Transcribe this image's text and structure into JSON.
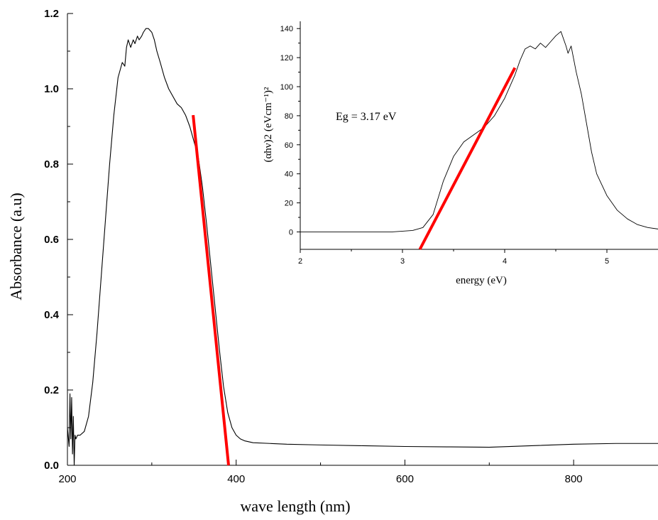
{
  "chart_data": [
    {
      "type": "line",
      "xlabel": "wave length (nm)",
      "ylabel": "Absorbance (a.u)",
      "xlim": [
        200,
        900
      ],
      "ylim": [
        0.0,
        1.2
      ],
      "x_ticks": [
        200,
        400,
        600,
        800
      ],
      "y_ticks": [
        0.0,
        0.2,
        0.4,
        0.6,
        0.8,
        1.0,
        1.2
      ],
      "x_tick_labels": [
        "200",
        "400",
        "600",
        "800"
      ],
      "y_tick_labels": [
        "0.0",
        "0.2",
        "0.4",
        "0.6",
        "0.8",
        "1.0",
        "1.2"
      ],
      "grid": false,
      "series": [
        {
          "color": "#000000",
          "x": [
            200,
            202,
            203,
            204,
            205,
            206,
            207,
            208,
            209,
            210,
            212,
            215,
            220,
            225,
            230,
            235,
            240,
            245,
            250,
            255,
            260,
            265,
            268,
            270,
            272,
            275,
            278,
            280,
            283,
            285,
            288,
            290,
            293,
            296,
            300,
            303,
            306,
            310,
            315,
            320,
            325,
            330,
            335,
            340,
            345,
            350,
            355,
            360,
            365,
            370,
            375,
            380,
            385,
            390,
            395,
            400,
            405,
            410,
            420,
            440,
            460,
            500,
            550,
            600,
            650,
            700,
            750,
            800,
            850,
            900
          ],
          "y": [
            0.1,
            0.05,
            0.19,
            0.07,
            0.18,
            0.03,
            0.13,
            0.0,
            0.08,
            0.07,
            0.08,
            0.08,
            0.09,
            0.13,
            0.22,
            0.35,
            0.5,
            0.65,
            0.8,
            0.93,
            1.03,
            1.07,
            1.06,
            1.11,
            1.13,
            1.11,
            1.13,
            1.12,
            1.14,
            1.13,
            1.14,
            1.15,
            1.16,
            1.16,
            1.15,
            1.13,
            1.1,
            1.07,
            1.03,
            1.0,
            0.98,
            0.96,
            0.95,
            0.93,
            0.9,
            0.86,
            0.82,
            0.74,
            0.64,
            0.53,
            0.42,
            0.31,
            0.21,
            0.14,
            0.1,
            0.08,
            0.07,
            0.065,
            0.06,
            0.058,
            0.056,
            0.054,
            0.052,
            0.05,
            0.049,
            0.048,
            0.052,
            0.056,
            0.058,
            0.058
          ]
        },
        {
          "color": "#ff0000",
          "x": [
            349,
            391
          ],
          "y": [
            0.93,
            0.0
          ]
        }
      ]
    },
    {
      "type": "line",
      "title": "",
      "xlabel": "energy (eV)",
      "ylabel": "(αhν)2 (eVcm⁻¹)²",
      "xlim": [
        2.0,
        5.5
      ],
      "ylim": [
        -12,
        145
      ],
      "x_ticks": [
        2,
        3,
        4,
        5
      ],
      "y_ticks": [
        0,
        20,
        40,
        60,
        80,
        100,
        120,
        140
      ],
      "x_tick_labels": [
        "2",
        "3",
        "4",
        "5"
      ],
      "y_tick_labels": [
        "0",
        "20",
        "40",
        "60",
        "80",
        "100",
        "120",
        "140"
      ],
      "annotation": "Eg = 3.17 eV",
      "grid": false,
      "series": [
        {
          "color": "#000000",
          "x": [
            2.0,
            2.5,
            2.9,
            3.1,
            3.2,
            3.3,
            3.4,
            3.5,
            3.6,
            3.7,
            3.8,
            3.9,
            4.0,
            4.1,
            4.15,
            4.2,
            4.25,
            4.3,
            4.35,
            4.4,
            4.45,
            4.5,
            4.55,
            4.6,
            4.62,
            4.65,
            4.7,
            4.75,
            4.8,
            4.85,
            4.9,
            5.0,
            5.1,
            5.2,
            5.3,
            5.4,
            5.5
          ],
          "y": [
            0,
            0,
            0,
            1,
            3,
            12,
            35,
            52,
            62,
            67,
            72,
            80,
            92,
            108,
            118,
            126,
            128,
            126,
            130,
            127,
            131,
            135,
            138,
            128,
            123,
            128,
            110,
            95,
            75,
            55,
            40,
            25,
            15,
            9,
            5,
            3,
            2
          ]
        },
        {
          "color": "#ff0000",
          "x": [
            3.17,
            4.1
          ],
          "y": [
            -12,
            113
          ]
        }
      ]
    }
  ]
}
